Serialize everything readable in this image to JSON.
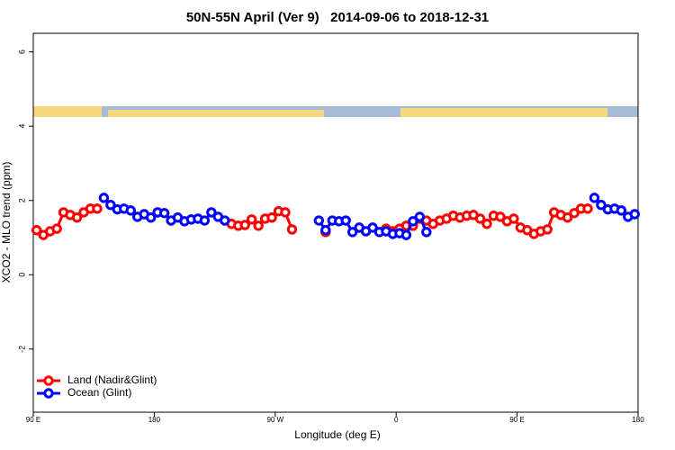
{
  "chart_data": {
    "type": "line",
    "title": "50N-55N April (Ver 9)   2014-09-06 to 2018-12-31",
    "xlabel": "Longitude (deg E)",
    "ylabel": "XCO2 - MLO trend (ppm)",
    "x": [
      92.5,
      97.5,
      102.5,
      107.5,
      112.5,
      117.5,
      122.5,
      127.5,
      132.5,
      137.5,
      142.5,
      147.5,
      152.5,
      157.5,
      162.5,
      167.5,
      172.5,
      177.5,
      182.5,
      187.5,
      192.5,
      197.5,
      202.5,
      207.5,
      212.5,
      217.5,
      222.5,
      227.5,
      232.5,
      237.5,
      242.5,
      247.5,
      252.5,
      257.5,
      262.5,
      267.5,
      272.5,
      277.5,
      282.5,
      287.5,
      292.5,
      297.5,
      302.5,
      307.5,
      312.5,
      317.5,
      322.5,
      327.5,
      332.5,
      337.5,
      342.5,
      347.5,
      352.5,
      357.5,
      362.5,
      367.5,
      372.5,
      377.5,
      382.5,
      387.5,
      392.5,
      397.5,
      402.5,
      407.5,
      412.5,
      417.5,
      422.5,
      427.5,
      432.5,
      437.5,
      442.5,
      447.5,
      452.5,
      457.5,
      462.5,
      467.5,
      472.5,
      477.5,
      482.5,
      487.5,
      492.5,
      497.5,
      502.5,
      507.5,
      512.5,
      517.5,
      522.5,
      527.5,
      532.5,
      537.5
    ],
    "series": [
      {
        "name": "Land (Nadir&Glint)",
        "color": "#ff0000",
        "values": [
          1.2,
          1.07,
          1.17,
          1.24,
          1.68,
          1.61,
          1.54,
          1.68,
          1.78,
          1.78,
          null,
          null,
          null,
          null,
          null,
          null,
          null,
          null,
          null,
          null,
          null,
          null,
          null,
          null,
          null,
          null,
          null,
          null,
          null,
          1.37,
          1.32,
          1.34,
          1.49,
          1.32,
          1.51,
          1.54,
          1.71,
          1.68,
          1.22,
          null,
          null,
          null,
          null,
          1.15,
          null,
          null,
          null,
          null,
          null,
          null,
          null,
          null,
          1.24,
          1.17,
          1.24,
          1.32,
          1.32,
          1.51,
          1.46,
          1.37,
          1.46,
          1.51,
          1.59,
          1.54,
          1.59,
          1.61,
          1.51,
          1.37,
          1.59,
          1.56,
          1.44,
          1.51,
          1.27,
          1.2,
          1.1,
          1.17,
          1.22,
          1.68,
          1.61,
          1.54,
          1.66,
          1.78,
          1.78,
          null,
          null,
          null,
          null,
          null,
          null,
          null
        ]
      },
      {
        "name": "Ocean (Glint)",
        "color": "#0000ff",
        "values": [
          null,
          null,
          null,
          null,
          null,
          null,
          null,
          null,
          null,
          null,
          2.07,
          1.88,
          1.76,
          1.78,
          1.73,
          1.56,
          1.63,
          1.54,
          1.68,
          1.66,
          1.46,
          1.54,
          1.44,
          1.49,
          1.51,
          1.46,
          1.68,
          1.56,
          1.46,
          null,
          null,
          null,
          null,
          null,
          null,
          null,
          null,
          null,
          null,
          null,
          null,
          null,
          1.46,
          1.2,
          1.46,
          1.44,
          1.46,
          1.15,
          1.27,
          1.17,
          1.27,
          1.15,
          1.17,
          1.1,
          1.12,
          1.07,
          1.44,
          1.56,
          1.15,
          null,
          null,
          null,
          null,
          null,
          null,
          null,
          null,
          null,
          null,
          null,
          null,
          null,
          null,
          null,
          null,
          null,
          null,
          null,
          null,
          null,
          null,
          null,
          null,
          2.07,
          1.88,
          1.76,
          1.78,
          1.73,
          1.56,
          1.63
        ]
      }
    ],
    "xlim": [
      90,
      540
    ],
    "xticks": [
      {
        "value": 90,
        "label": "90 E"
      },
      180,
      {
        "value": 270,
        "label": "90 W"
      },
      {
        "value": 360,
        "label": "0"
      },
      {
        "value": 450,
        "label": "90 E"
      },
      180
    ],
    "ylim": [
      -3.7,
      6.5
    ],
    "yticks": [
      -2,
      0,
      2,
      4,
      6
    ],
    "legend": "bottom-left"
  }
}
